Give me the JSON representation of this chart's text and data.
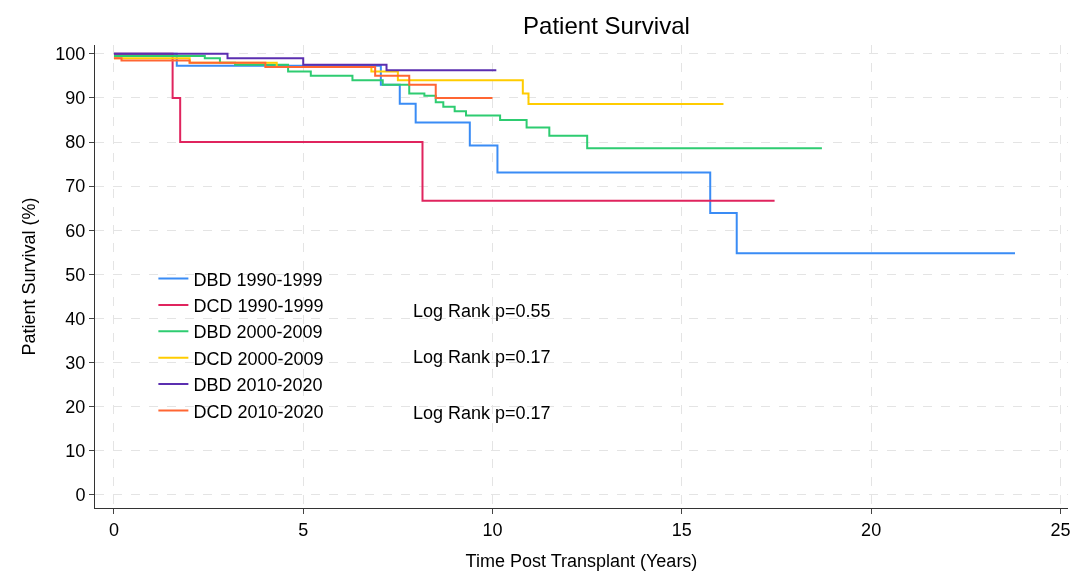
{
  "chart_data": {
    "type": "step",
    "title": "Patient Survival",
    "xlabel": "Time Post Transplant (Years)",
    "ylabel": "Patient Survival (%)",
    "xlim": [
      -0.5,
      25.2
    ],
    "ylim": [
      -3,
      102
    ],
    "xticks": [
      0,
      5,
      10,
      15,
      20,
      25
    ],
    "yticks": [
      0,
      10,
      20,
      30,
      40,
      50,
      60,
      70,
      80,
      90,
      100
    ],
    "grid": true,
    "legend": "bottom left",
    "line_style": "solid",
    "annotations": [
      "Log Rank p=0.55",
      "Log Rank p=0.17",
      "Log Rank p=0.17"
    ],
    "series": [
      {
        "name": "DBD 1990-1999",
        "color": "#3a8cf5",
        "x": [
          0,
          1.66,
          7.05,
          7.55,
          7.97,
          9.4,
          10.13,
          15.75,
          16.45,
          23.8
        ],
        "values": [
          100,
          97.3,
          93,
          88.7,
          84.4,
          79.2,
          73.1,
          63.9,
          54.8,
          54.8
        ]
      },
      {
        "name": "DCD 1990-1999",
        "color": "#e0245e",
        "x": [
          0,
          1.55,
          1.75,
          8.15,
          17.45
        ],
        "values": [
          100,
          90,
          80,
          66.7,
          66.7
        ]
      },
      {
        "name": "DBD 2000-2009",
        "color": "#2ecc71",
        "x": [
          0,
          2.4,
          2.8,
          3.2,
          4.6,
          5.2,
          6.3,
          7.1,
          7.8,
          8.2,
          8.5,
          8.7,
          9.0,
          9.3,
          10.2,
          10.9,
          11.5,
          12.5,
          18.7
        ],
        "values": [
          99.5,
          99,
          98,
          97.5,
          96,
          95,
          94,
          93,
          91,
          90.5,
          89,
          88,
          87,
          86,
          85,
          83.3,
          81.4,
          78.6,
          78.6
        ]
      },
      {
        "name": "DCD 2000-2009",
        "color": "#ffcc00",
        "x": [
          0,
          2,
          4.3,
          6.8,
          7.5,
          10.8,
          10.95,
          16.1
        ],
        "values": [
          99,
          98,
          97,
          96,
          94,
          91,
          88.6,
          88.6
        ]
      },
      {
        "name": "DBD 2010-2020",
        "color": "#5b2fb0",
        "x": [
          0,
          3,
          5,
          7.2,
          10.1
        ],
        "values": [
          100,
          99,
          97.5,
          96.3,
          96.3
        ]
      },
      {
        "name": "DCD 2010-2020",
        "color": "#ff6633",
        "x": [
          0,
          0.2,
          2,
          4,
          6.9,
          7.8,
          8.5,
          10
        ],
        "values": [
          99,
          98.5,
          98,
          97,
          95,
          93,
          90,
          90
        ]
      }
    ]
  }
}
